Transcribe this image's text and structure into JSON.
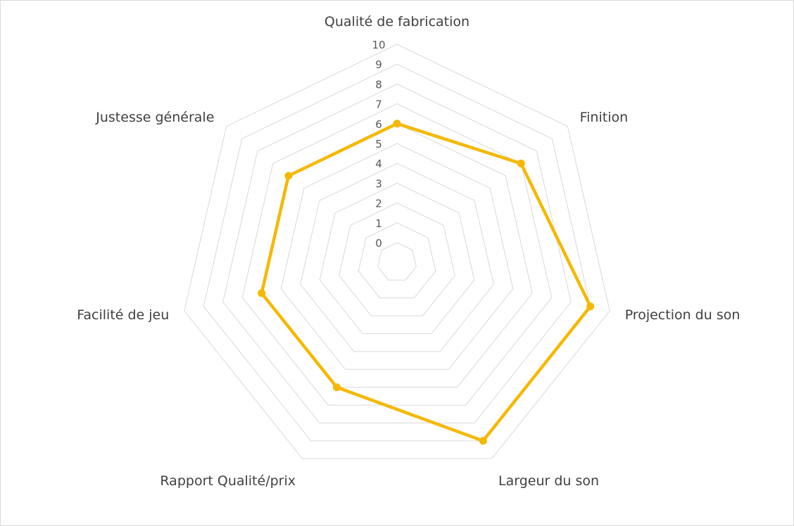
{
  "chart_data": {
    "type": "radar",
    "categories": [
      "Qualité de fabrication",
      "Finition",
      "Projection du son",
      "Largeur du son",
      "Rapport Qualité/prix",
      "Facilité de jeu",
      "Justesse générale"
    ],
    "series": [
      {
        "values": [
          6,
          7,
          9,
          9,
          6,
          6,
          6
        ],
        "color": "#F5B800"
      }
    ],
    "rlim": [
      0,
      10
    ],
    "ticks": [
      "0",
      "1",
      "2",
      "3",
      "4",
      "5",
      "6",
      "7",
      "8",
      "9",
      "10"
    ],
    "grid": true,
    "legend": "none",
    "title": ""
  }
}
